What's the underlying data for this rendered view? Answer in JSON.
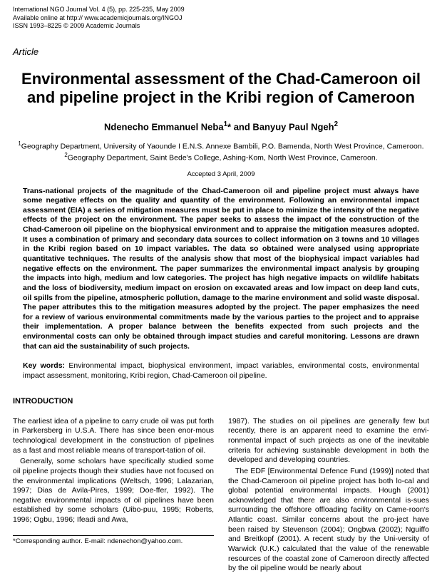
{
  "journal": {
    "line1": "International NGO Journal Vol. 4 (5), pp. 225-235, May 2009",
    "line2": "Available online at http:// www.academicjournals.org/INGOJ",
    "line3": "ISSN 1993–8225 © 2009 Academic Journals"
  },
  "article_label": "Article",
  "title": "Environmental assessment of the Chad-Cameroon oil and pipeline project in the Kribi region of Cameroon",
  "authors_html": "Ndenecho Emmanuel Neba<sup>1</sup>* and Banyuy Paul Ngeh<sup>2</sup>",
  "affiliations": [
    "<sup>1</sup>Geography Department, University of Yaounde I E.N.S. Annexe Bambili, P.O. Bamenda, North West Province, Cameroon.",
    "<sup>2</sup>Geography Department, Saint Bede's College, Ashing-Kom, North West Province, Cameroon."
  ],
  "accepted": "Accepted 3 April, 2009",
  "abstract": "Trans-national projects of the magnitude of the Chad-Cameroon oil and pipeline project must always have some negative effects on the quality and quantity of the environment. Following an environmental impact assessment (EIA) a series of mitigation measures must be put in place to minimize the intensity of the negative effects of the project on the environment. The paper seeks to assess the impact of the construction of the Chad-Cameroon oil pipeline on the biophysical environment and to appraise the mitigation measures adopted. It uses a combination of primary and secondary data sources to collect information on 3 towns and 10 villages in the Kribi region based on 10 impact variables. The data so obtained were analysed using appropriate quantitative techniques. The results of the analysis show that most of the biophysical impact variables had negative effects on the environment. The paper summarizes the environmental impact analysis by grouping the impacts into high, medium and low categories. The project has high negative impacts on wildlife habitats and the loss of biodiversity, medium impact on erosion on excavated areas and low impact on deep land cuts, oil spills from the pipeline, atmospheric pollution, damage to the marine environment and solid waste disposal. The paper attributes this to the mitigation measures adopted by the project. The paper emphasizes the need for a review of various environmental commitments made by the various parties to the project and to appraise their implementation. A proper balance between the benefits expected from such projects and the environmental costs can only be obtained through impact studies and careful monitoring. Lessons are drawn that can aid the sustainability of such projects.",
  "keywords_label": "Key words:",
  "keywords": " Environmental impact, biophysical environment, impact variables, environmental costs, environmental impact assessment, monitoring, Kribi region, Chad-Cameroon oil pipeline.",
  "section_intro": "INTRODUCTION",
  "col1_p1": "The earliest idea of a pipeline to carry crude oil was put forth in Parkersberg in U.S.A. There has since been enor-mous technological development in the construction of pipelines as a fast and most reliable means of transport-tation of oil.",
  "col1_p2": "Generally, some scholars have specifically studied some oil pipeline projects though their studies have not focused on the environmental implications (Weltsch, 1996; Lalazarian, 1997; Dias de Avila-Pires, 1999; Doe-ffer, 1992). The negative environmental impacts of oil pipelines have been established by some scholars (Uibo-puu, 1995; Roberts, 1996; Ogbu, 1996; Ifeadi  and  Awa,",
  "col2_p1": "1987). The studies on oil pipelines are generally few but recently, there is an apparent need to examine the envi-ronmental impact of such projects as one of the inevitable criteria for achieving sustainable development in both the developed and developing countries.",
  "col2_p2": "The EDF [Environmental Defence Fund (1999)] noted that the Chad-Cameroon oil pipeline project has both lo-cal and global potential environmental impacts. Hough (2001) acknowledged that there are also environmental is-sues surrounding the offshore offloading facility on Came-roon's Atlantic coast. Similar concerns about the pro-ject have been raised by Stevenson (2004); Ongbwa (2002); Nguiffo and Breitkopf (2001). A recent study by the Uni-versity of Warwick (U.K.) calculated that the value of the renewable resources of the coastal zone of Cameroon directly affected by the oil pipeline would be nearly  about",
  "footer": "*Corresponding author. E-mail: ndenechon@yahoo.com."
}
